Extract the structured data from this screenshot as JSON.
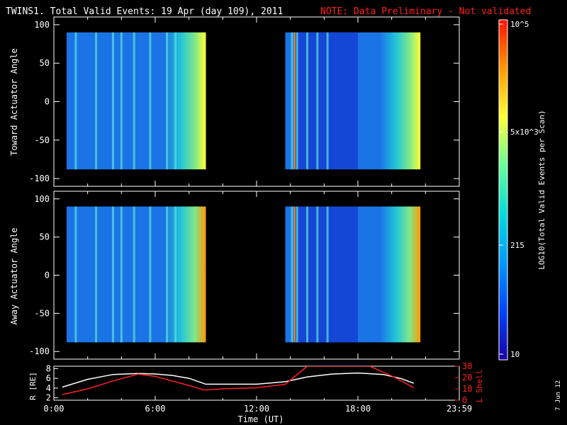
{
  "header": {
    "title": "TWINS1. Total Valid Events: 19 Apr (day 109), 2011",
    "note": "NOTE: Data Preliminary - Not validated",
    "note_color": "#ff2020"
  },
  "date_stamp": "7 Jun 12",
  "colorbar": {
    "label": "LOG10(Total Valid Events per Scan)",
    "ticks": [
      "10^5",
      "5x10^3",
      "215",
      "10"
    ],
    "colors": [
      "#1a00a8",
      "#0044ff",
      "#0099ff",
      "#00dddd",
      "#66ff99",
      "#ffff33",
      "#ff9900",
      "#ff1100"
    ]
  },
  "chart_data": [
    {
      "type": "heatmap",
      "name": "toward-panel",
      "ylabel": "Toward Actuator Angle",
      "ylim": [
        -110,
        110
      ],
      "yticks": [
        100,
        50,
        0,
        -50,
        -100
      ],
      "xlim": [
        0,
        24
      ],
      "segments": [
        {
          "start": 0.75,
          "end": 9.0
        },
        {
          "start": 13.7,
          "end": 21.7
        }
      ],
      "angle_range": [
        -88,
        90
      ],
      "background_color": "#1a74e6",
      "gradient_end_color": "#ffff33",
      "bright_streaks": [
        1.3,
        2.5,
        3.5,
        4.0,
        4.75,
        5.7,
        6.7,
        7.2,
        14.1,
        14.4,
        15.0,
        15.6,
        16.2
      ],
      "dark_region": {
        "start": 14.2,
        "end": 18.0
      },
      "hot_line": 14.25
    },
    {
      "type": "heatmap",
      "name": "away-panel",
      "ylabel": "Away Actuator Angle",
      "ylim": [
        -110,
        110
      ],
      "yticks": [
        100,
        50,
        0,
        -50,
        -100
      ],
      "xlim": [
        0,
        24
      ],
      "segments": [
        {
          "start": 0.75,
          "end": 9.0
        },
        {
          "start": 13.7,
          "end": 21.7
        }
      ],
      "angle_range": [
        -88,
        90
      ],
      "background_color": "#1a74e6",
      "gradient_end_color": "#ff9900",
      "bright_streaks": [
        1.3,
        2.5,
        3.5,
        4.0,
        4.75,
        5.7,
        6.7,
        7.2,
        14.1,
        14.4,
        15.0,
        15.6,
        16.2
      ],
      "dark_region": {
        "start": 14.2,
        "end": 18.0
      },
      "hot_line": 14.25
    },
    {
      "type": "line",
      "name": "orbit-panel",
      "ylabel": "R [RE]",
      "y2label": "L Shell",
      "xlabel": "Time (UT)",
      "xticks": [
        "0:00",
        "6:00",
        "12:00",
        "18:00",
        "23:59"
      ],
      "xtick_values": [
        0,
        6,
        12,
        18,
        24
      ],
      "ylim": [
        1.5,
        8.5
      ],
      "yticks": [
        8,
        6,
        4,
        2
      ],
      "y2lim": [
        0,
        30
      ],
      "y2ticks": [
        30,
        20,
        10,
        0
      ],
      "series": [
        {
          "name": "R",
          "color": "#ffffff",
          "x": [
            0.5,
            2,
            3.5,
            5,
            6,
            7,
            8,
            9,
            12,
            13.7,
            15,
            16.5,
            18,
            19.5,
            20.5,
            21.3
          ],
          "values": [
            4.2,
            5.8,
            6.8,
            7.0,
            6.9,
            6.6,
            6.0,
            4.8,
            4.8,
            5.3,
            6.3,
            6.9,
            7.1,
            6.8,
            6.0,
            5.0
          ]
        },
        {
          "name": "L Shell",
          "color": "#ff2020",
          "axis": "y2",
          "x": [
            0.5,
            2,
            3.5,
            5,
            6,
            7,
            8,
            8.9,
            10,
            12,
            13.7,
            15.0,
            18.7,
            19.0,
            20.2,
            21.3
          ],
          "values": [
            5,
            10,
            17,
            23,
            21,
            17,
            13,
            9,
            10,
            11,
            14,
            30,
            30,
            28,
            20,
            11
          ]
        }
      ]
    }
  ]
}
